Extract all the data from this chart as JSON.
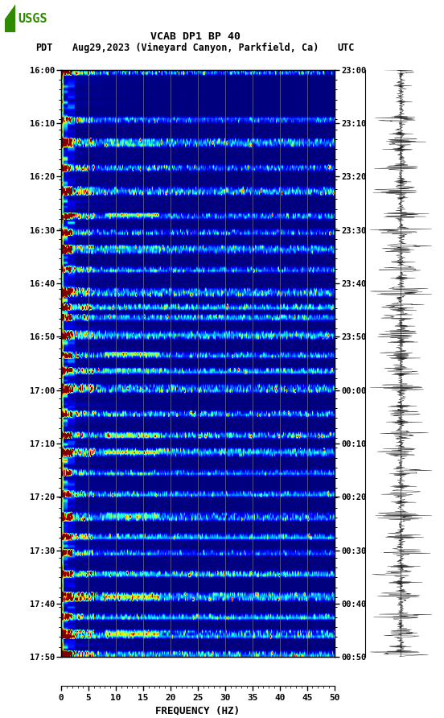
{
  "title_line1": "VCAB DP1 BP 40",
  "title_line2_pdt": "PDT",
  "title_line2_mid": "Aug29,2023 (Vineyard Canyon, Parkfield, Ca)",
  "title_line2_utc": "UTC",
  "xlabel": "FREQUENCY (HZ)",
  "freq_min": 0,
  "freq_max": 50,
  "freq_ticks": [
    0,
    5,
    10,
    15,
    20,
    25,
    30,
    35,
    40,
    45,
    50
  ],
  "pdt_labels": [
    "16:00",
    "16:10",
    "16:20",
    "16:30",
    "16:40",
    "16:50",
    "17:00",
    "17:10",
    "17:20",
    "17:30",
    "17:40",
    "17:50"
  ],
  "utc_labels": [
    "23:00",
    "23:10",
    "23:20",
    "23:30",
    "23:40",
    "23:50",
    "00:00",
    "00:10",
    "00:20",
    "00:30",
    "00:40",
    "00:50"
  ],
  "n_time_rows": 220,
  "n_freq_cols": 500,
  "background_color": "#ffffff",
  "spectrogram_cmap": "jet",
  "grid_color": "#888888",
  "vertical_grid_freqs": [
    5,
    10,
    15,
    20,
    25,
    30,
    35,
    40,
    45
  ],
  "usgs_green": "#2e8b00",
  "fig_width": 5.52,
  "fig_height": 8.92
}
